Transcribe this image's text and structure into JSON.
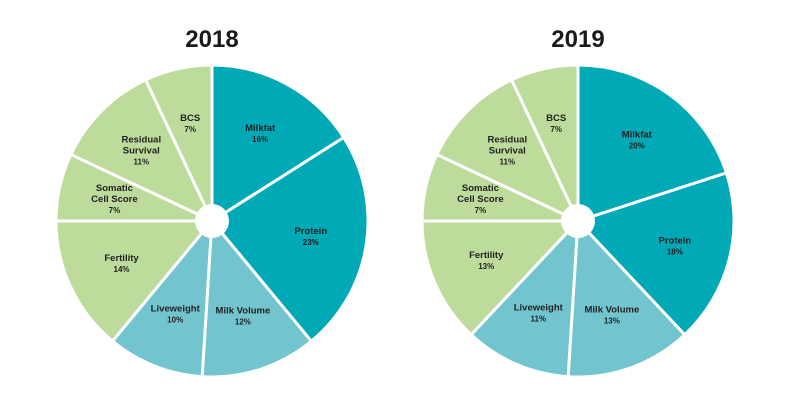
{
  "colors": {
    "teal": "#00a9b6",
    "light_blue": "#72c5cf",
    "light_green": "#bddc9c",
    "separator": "#ffffff"
  },
  "chart_data": [
    {
      "type": "pie",
      "title": "2018",
      "donut_hole": true,
      "slices": [
        {
          "label": [
            "Milkfat"
          ],
          "value": 16,
          "value_label": "16%",
          "color": "#00a9b6"
        },
        {
          "label": [
            "Protein"
          ],
          "value": 23,
          "value_label": "23%",
          "color": "#00a9b6"
        },
        {
          "label": [
            "Milk Volume"
          ],
          "value": 12,
          "value_label": "12%",
          "color": "#72c5cf"
        },
        {
          "label": [
            "Liveweight"
          ],
          "value": 10,
          "value_label": "10%",
          "color": "#72c5cf"
        },
        {
          "label": [
            "Fertility"
          ],
          "value": 14,
          "value_label": "14%",
          "color": "#bddc9c"
        },
        {
          "label": [
            "Somatic",
            "Cell Score"
          ],
          "value": 7,
          "value_label": "7%",
          "color": "#bddc9c"
        },
        {
          "label": [
            "Residual",
            "Survival"
          ],
          "value": 11,
          "value_label": "11%",
          "color": "#bddc9c"
        },
        {
          "label": [
            "BCS"
          ],
          "value": 7,
          "value_label": "7%",
          "color": "#bddc9c"
        }
      ]
    },
    {
      "type": "pie",
      "title": "2019",
      "donut_hole": true,
      "slices": [
        {
          "label": [
            "Milkfat"
          ],
          "value": 20,
          "value_label": "20%",
          "color": "#00a9b6"
        },
        {
          "label": [
            "Protein"
          ],
          "value": 18,
          "value_label": "18%",
          "color": "#00a9b6"
        },
        {
          "label": [
            "Milk Volume"
          ],
          "value": 13,
          "value_label": "13%",
          "color": "#72c5cf"
        },
        {
          "label": [
            "Liveweight"
          ],
          "value": 11,
          "value_label": "11%",
          "color": "#72c5cf"
        },
        {
          "label": [
            "Fertility"
          ],
          "value": 13,
          "value_label": "13%",
          "color": "#bddc9c"
        },
        {
          "label": [
            "Somatic",
            "Cell Score"
          ],
          "value": 7,
          "value_label": "7%",
          "color": "#bddc9c"
        },
        {
          "label": [
            "Residual",
            "Survival"
          ],
          "value": 11,
          "value_label": "11%",
          "color": "#bddc9c"
        },
        {
          "label": [
            "BCS"
          ],
          "value": 7,
          "value_label": "7%",
          "color": "#bddc9c"
        }
      ]
    }
  ]
}
